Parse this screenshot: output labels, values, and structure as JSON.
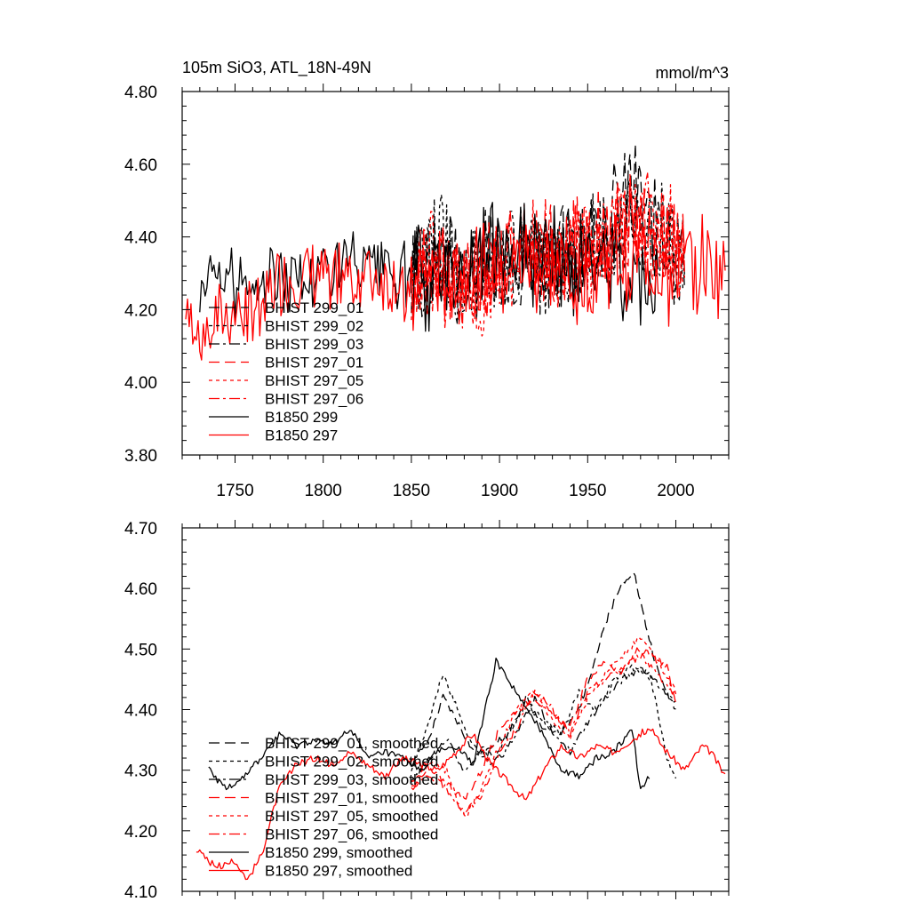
{
  "chart_data": [
    {
      "type": "line",
      "title": "105m SiO3, ATL_18N-49N",
      "units": "mmol/m^3",
      "xlim": [
        1720,
        2030
      ],
      "ylim": [
        3.8,
        4.8
      ],
      "xticks": [
        1750,
        1800,
        1850,
        1900,
        1950,
        2000
      ],
      "xtick_labels": [
        "1750",
        "1800",
        "1850",
        "1900",
        "1950",
        "2000"
      ],
      "yticks": [
        3.8,
        4.0,
        4.2,
        4.4,
        4.6,
        4.8
      ],
      "ytick_labels": [
        "3.80",
        "4.00",
        "4.20",
        "4.40",
        "4.60",
        "4.80"
      ],
      "series": [
        {
          "name": "BHIST 299_01",
          "color": "#000000",
          "dash": "long-dash",
          "x_start": 1850,
          "x_end": 2005,
          "x": [
            1850,
            1865,
            1880,
            1895,
            1910,
            1925,
            1940,
            1955,
            1965,
            1976,
            1985,
            1995,
            2005
          ],
          "y": [
            4.3,
            4.36,
            4.28,
            4.38,
            4.33,
            4.36,
            4.36,
            4.42,
            4.47,
            4.55,
            4.44,
            4.4,
            4.36
          ]
        },
        {
          "name": "BHIST 299_02",
          "color": "#000000",
          "dash": "short-dash",
          "x_start": 1850,
          "x_end": 2005,
          "x": [
            1850,
            1865,
            1880,
            1895,
            1910,
            1925,
            1940,
            1955,
            1965,
            1976,
            1985,
            1995,
            2005
          ],
          "y": [
            4.3,
            4.4,
            4.3,
            4.33,
            4.35,
            4.32,
            4.34,
            4.38,
            4.4,
            4.42,
            4.4,
            4.39,
            4.32
          ]
        },
        {
          "name": "BHIST 299_03",
          "color": "#000000",
          "dash": "dash-dot",
          "x_start": 1850,
          "x_end": 2005,
          "x": [
            1850,
            1865,
            1880,
            1895,
            1910,
            1925,
            1940,
            1955,
            1965,
            1976,
            1985,
            1995,
            2005
          ],
          "y": [
            4.29,
            4.32,
            4.3,
            4.34,
            4.36,
            4.33,
            4.34,
            4.37,
            4.4,
            4.43,
            4.39,
            4.38,
            4.32
          ]
        },
        {
          "name": "BHIST 297_01",
          "color": "#ff0000",
          "dash": "long-dash",
          "x_start": 1850,
          "x_end": 2005,
          "x": [
            1850,
            1865,
            1880,
            1895,
            1910,
            1925,
            1940,
            1955,
            1965,
            1976,
            1985,
            1995,
            2005
          ],
          "y": [
            4.28,
            4.3,
            4.24,
            4.3,
            4.38,
            4.34,
            4.36,
            4.38,
            4.42,
            4.43,
            4.4,
            4.4,
            4.34
          ]
        },
        {
          "name": "BHIST 297_05",
          "color": "#ff0000",
          "dash": "short-dash",
          "x_start": 1850,
          "x_end": 2005,
          "x": [
            1850,
            1865,
            1880,
            1895,
            1910,
            1925,
            1940,
            1955,
            1965,
            1976,
            1985,
            1995,
            2005
          ],
          "y": [
            4.28,
            4.34,
            4.22,
            4.28,
            4.36,
            4.36,
            4.34,
            4.38,
            4.4,
            4.44,
            4.42,
            4.41,
            4.33
          ]
        },
        {
          "name": "BHIST 297_06",
          "color": "#ff0000",
          "dash": "dash-dot",
          "x_start": 1850,
          "x_end": 2005,
          "x": [
            1850,
            1865,
            1880,
            1895,
            1910,
            1925,
            1940,
            1955,
            1965,
            1976,
            1985,
            1995,
            2005
          ],
          "y": [
            4.27,
            4.3,
            4.24,
            4.27,
            4.35,
            4.36,
            4.34,
            4.4,
            4.4,
            4.44,
            4.42,
            4.43,
            4.34
          ]
        },
        {
          "name": "B1850 299",
          "color": "#000000",
          "dash": "solid",
          "x_start": 1730,
          "x_end": 1990,
          "x": [
            1730,
            1750,
            1770,
            1790,
            1810,
            1830,
            1850,
            1870,
            1890,
            1900,
            1920,
            1940,
            1960,
            1975,
            1990
          ],
          "y": [
            4.28,
            4.27,
            4.3,
            4.28,
            4.33,
            4.3,
            4.28,
            4.3,
            4.33,
            4.41,
            4.36,
            4.31,
            4.33,
            4.31,
            4.29
          ]
        },
        {
          "name": "B1850 297",
          "color": "#ff0000",
          "dash": "solid",
          "x_start": 1722,
          "x_end": 2028,
          "x": [
            1722,
            1740,
            1760,
            1780,
            1800,
            1820,
            1840,
            1860,
            1880,
            1900,
            1920,
            1940,
            1960,
            1980,
            2000,
            2015,
            2028
          ],
          "y": [
            4.16,
            4.16,
            4.21,
            4.28,
            4.29,
            4.29,
            4.28,
            4.29,
            4.29,
            4.33,
            4.31,
            4.3,
            4.32,
            4.34,
            4.3,
            4.33,
            4.29
          ]
        }
      ],
      "legend": [
        "BHIST 299_01",
        "BHIST 299_02",
        "BHIST 299_03",
        "BHIST 297_01",
        "BHIST 297_05",
        "BHIST 297_06",
        "B1850 299",
        "B1850 297"
      ],
      "legend_position": "lower-left"
    },
    {
      "type": "line",
      "title": "",
      "xlim": [
        1720,
        2030
      ],
      "ylim": [
        4.1,
        4.7
      ],
      "xticks": [
        1750,
        1800,
        1850,
        1900,
        1950,
        2000
      ],
      "yticks": [
        4.1,
        4.2,
        4.3,
        4.4,
        4.5,
        4.6,
        4.7
      ],
      "ytick_labels": [
        "4.10",
        "4.20",
        "4.30",
        "4.40",
        "4.50",
        "4.60",
        "4.70"
      ],
      "series": [
        {
          "name": "BHIST 299_01, smoothed",
          "color": "#000000",
          "dash": "long-dash",
          "x": [
            1850,
            1860,
            1868,
            1876,
            1885,
            1895,
            1905,
            1915,
            1925,
            1935,
            1945,
            1955,
            1962,
            1970,
            1976,
            1982,
            1990,
            2000
          ],
          "y": [
            4.31,
            4.35,
            4.42,
            4.38,
            4.33,
            4.34,
            4.36,
            4.42,
            4.37,
            4.36,
            4.4,
            4.49,
            4.56,
            4.61,
            4.63,
            4.55,
            4.46,
            4.4
          ]
        },
        {
          "name": "BHIST 299_02, smoothed",
          "color": "#000000",
          "dash": "short-dash",
          "x": [
            1850,
            1860,
            1868,
            1876,
            1885,
            1895,
            1905,
            1915,
            1925,
            1935,
            1945,
            1955,
            1965,
            1975,
            1985,
            1995,
            2000
          ],
          "y": [
            4.3,
            4.38,
            4.46,
            4.4,
            4.34,
            4.31,
            4.36,
            4.41,
            4.38,
            4.36,
            4.43,
            4.4,
            4.45,
            4.47,
            4.46,
            4.32,
            4.29
          ]
        },
        {
          "name": "BHIST 299_03, smoothed",
          "color": "#000000",
          "dash": "dash-dot",
          "x": [
            1850,
            1860,
            1870,
            1880,
            1890,
            1900,
            1910,
            1920,
            1930,
            1940,
            1950,
            1960,
            1970,
            1980,
            1990,
            2000
          ],
          "y": [
            4.28,
            4.32,
            4.35,
            4.3,
            4.33,
            4.32,
            4.36,
            4.42,
            4.36,
            4.33,
            4.38,
            4.42,
            4.45,
            4.47,
            4.44,
            4.41
          ]
        },
        {
          "name": "BHIST 297_01, smoothed",
          "color": "#ff0000",
          "dash": "long-dash",
          "x": [
            1850,
            1860,
            1870,
            1880,
            1890,
            1900,
            1910,
            1920,
            1930,
            1940,
            1950,
            1960,
            1970,
            1978,
            1985,
            1995,
            2000
          ],
          "y": [
            4.27,
            4.3,
            4.28,
            4.25,
            4.3,
            4.37,
            4.4,
            4.42,
            4.39,
            4.37,
            4.45,
            4.48,
            4.46,
            4.5,
            4.49,
            4.47,
            4.41
          ]
        },
        {
          "name": "BHIST 297_05, smoothed",
          "color": "#ff0000",
          "dash": "short-dash",
          "x": [
            1850,
            1860,
            1870,
            1880,
            1890,
            1900,
            1910,
            1920,
            1930,
            1940,
            1950,
            1960,
            1970,
            1980,
            1990,
            2000
          ],
          "y": [
            4.28,
            4.31,
            4.3,
            4.22,
            4.27,
            4.34,
            4.4,
            4.43,
            4.38,
            4.35,
            4.42,
            4.46,
            4.49,
            4.52,
            4.48,
            4.43
          ]
        },
        {
          "name": "BHIST 297_06, smoothed",
          "color": "#ff0000",
          "dash": "dash-dot",
          "x": [
            1850,
            1860,
            1870,
            1880,
            1890,
            1900,
            1910,
            1920,
            1930,
            1940,
            1950,
            1960,
            1970,
            1980,
            1990,
            2000
          ],
          "y": [
            4.27,
            4.29,
            4.27,
            4.23,
            4.26,
            4.33,
            4.37,
            4.43,
            4.4,
            4.36,
            4.43,
            4.45,
            4.47,
            4.49,
            4.46,
            4.42
          ]
        },
        {
          "name": "B1850 299, smoothed",
          "color": "#000000",
          "dash": "solid",
          "x": [
            1735,
            1745,
            1755,
            1765,
            1775,
            1785,
            1795,
            1805,
            1815,
            1825,
            1835,
            1845,
            1855,
            1865,
            1875,
            1885,
            1898,
            1905,
            1915,
            1925,
            1935,
            1945,
            1955,
            1965,
            1975,
            1980,
            1985
          ],
          "y": [
            4.3,
            4.27,
            4.29,
            4.32,
            4.36,
            4.34,
            4.35,
            4.34,
            4.37,
            4.32,
            4.33,
            4.32,
            4.3,
            4.33,
            4.34,
            4.31,
            4.48,
            4.45,
            4.4,
            4.36,
            4.3,
            4.29,
            4.32,
            4.33,
            4.37,
            4.27,
            4.29
          ]
        },
        {
          "name": "B1850 297, smoothed",
          "color": "#ff0000",
          "dash": "solid",
          "x": [
            1728,
            1735,
            1742,
            1750,
            1757,
            1765,
            1775,
            1785,
            1795,
            1805,
            1815,
            1825,
            1835,
            1845,
            1855,
            1865,
            1875,
            1885,
            1895,
            1905,
            1915,
            1925,
            1935,
            1945,
            1955,
            1965,
            1975,
            1985,
            1995,
            2005,
            2015,
            2020,
            2028
          ],
          "y": [
            4.17,
            4.15,
            4.14,
            4.15,
            4.12,
            4.16,
            4.27,
            4.31,
            4.32,
            4.31,
            4.33,
            4.31,
            4.29,
            4.32,
            4.31,
            4.3,
            4.33,
            4.36,
            4.31,
            4.28,
            4.25,
            4.3,
            4.34,
            4.32,
            4.34,
            4.33,
            4.35,
            4.37,
            4.33,
            4.3,
            4.34,
            4.33,
            4.29
          ]
        }
      ],
      "legend": [
        "BHIST 299_01, smoothed",
        "BHIST 299_02, smoothed",
        "BHIST 299_03, smoothed",
        "BHIST 297_01, smoothed",
        "BHIST 297_05, smoothed",
        "BHIST 297_06, smoothed",
        "B1850 299, smoothed",
        "B1850 297, smoothed"
      ],
      "legend_position": "lower-left"
    }
  ]
}
